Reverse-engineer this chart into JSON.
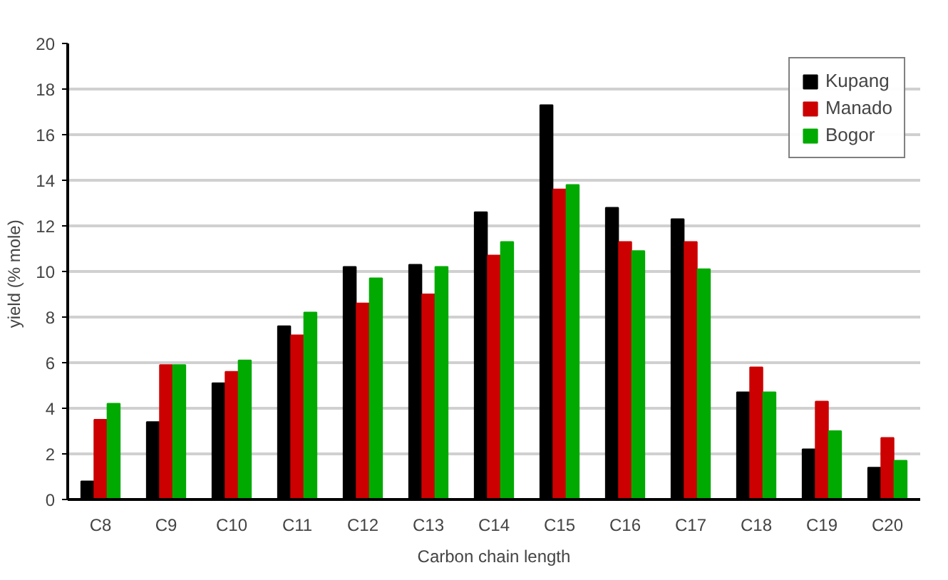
{
  "chart_data": {
    "type": "bar",
    "xlabel": "Carbon chain length",
    "ylabel": "yield  (% mole)",
    "categories": [
      "C8",
      "C9",
      "C10",
      "C11",
      "C12",
      "C13",
      "C14",
      "C15",
      "C16",
      "C17",
      "C18",
      "C19",
      "C20"
    ],
    "series": [
      {
        "name": "Kupang",
        "color": "#000000",
        "values": [
          0.8,
          3.4,
          5.1,
          7.6,
          10.2,
          10.3,
          12.6,
          17.3,
          12.8,
          12.3,
          4.7,
          2.2,
          1.4
        ]
      },
      {
        "name": "Manado",
        "color": "#cc0000",
        "values": [
          3.5,
          5.9,
          5.6,
          7.2,
          8.6,
          9.0,
          10.7,
          13.6,
          11.3,
          11.3,
          5.8,
          4.3,
          2.7
        ]
      },
      {
        "name": "Bogor",
        "color": "#00aa00",
        "values": [
          4.2,
          5.9,
          6.1,
          8.2,
          9.7,
          10.2,
          11.3,
          13.8,
          10.9,
          10.1,
          4.7,
          3.0,
          1.7
        ]
      }
    ],
    "ylim": [
      0,
      20
    ],
    "yticks": [
      0,
      2,
      4,
      6,
      8,
      10,
      12,
      14,
      16,
      18,
      20
    ],
    "grid": "y",
    "legend": "top right"
  }
}
